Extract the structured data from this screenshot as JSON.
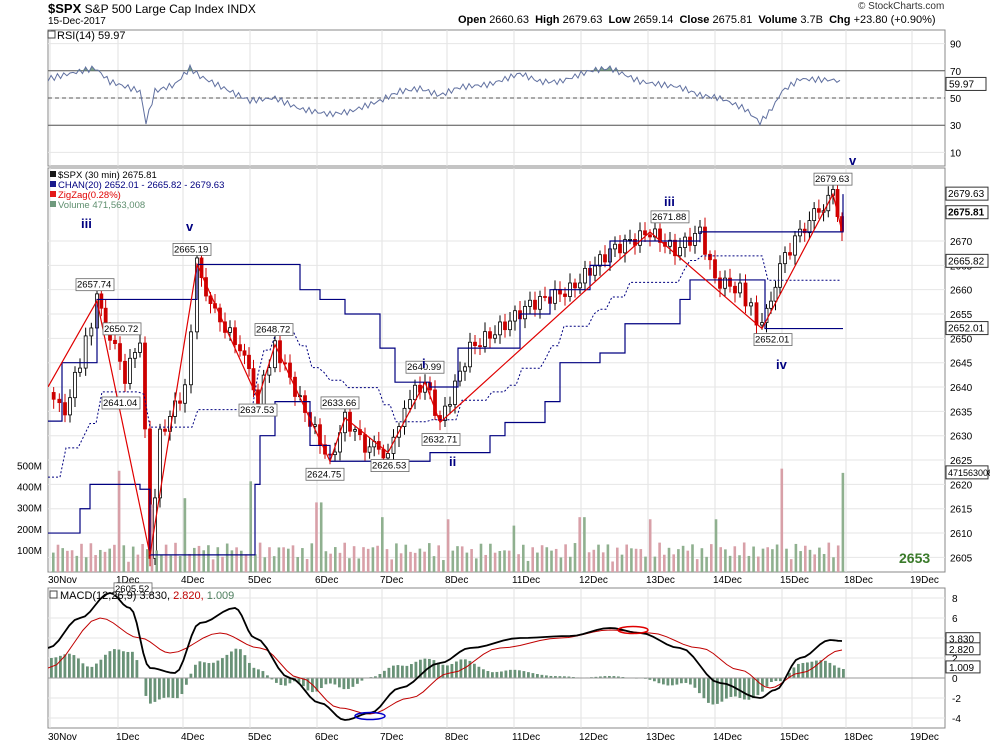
{
  "header": {
    "symbol": "$SPX",
    "name": "S&P 500 Large Cap Index",
    "exchange": "INDX",
    "date": "15-Dec-2017",
    "open_label": "Open",
    "open": "2660.63",
    "high_label": "High",
    "high": "2679.63",
    "low_label": "Low",
    "low": "2659.14",
    "close_label": "Close",
    "close": "2675.81",
    "volume_label": "Volume",
    "volume": "3.7B",
    "chg_label": "Chg",
    "chg": "+23.80 (+0.90%)",
    "brand": "© StockCharts.com"
  },
  "colors": {
    "price_up": "#000000",
    "price_down": "#cc0000",
    "channel": "#000080",
    "zigzag": "#e00000",
    "vol_up": "#8fb08f",
    "vol_down": "#d8a0a8",
    "rsi_fill": "#5f8f6f",
    "macd": "#000000",
    "macd_signal": "#c00000",
    "hist": "#4f7f5f",
    "wave": "#000080",
    "ellipse_red": "#e00000",
    "ellipse_blue": "#0000cc"
  },
  "chart_data": [
    {
      "panel": "rsi",
      "type": "line",
      "legend": "RSI(14)",
      "legend_value": "59.97",
      "y_ticks": [
        "90",
        "70",
        "50",
        "30",
        "10"
      ],
      "last_label": "59.97",
      "levels": [
        70,
        50,
        30
      ],
      "ylim": [
        0,
        100
      ]
    },
    {
      "panel": "price",
      "type": "candlestick",
      "legend": [
        {
          "text": "$SPX (30 min) 2675.81",
          "color": "#000000"
        },
        {
          "text": "CHAN(20) 2652.01 - 2665.82 - 2679.63",
          "color": "#000080"
        },
        {
          "text": "ZigZag(0.28%)",
          "color": "#e00000"
        },
        {
          "text": "Volume 471,563,008",
          "color": "#5f8f6f"
        }
      ],
      "ylim": [
        2602,
        2685
      ],
      "y_ticks": [
        "2670",
        "2665",
        "2660",
        "2655",
        "2650",
        "2645",
        "2640",
        "2635",
        "2630",
        "2625",
        "2620",
        "2615",
        "2610",
        "2605"
      ],
      "right_labels": [
        "2679.63",
        "2675.81",
        "2665.82",
        "2652.01",
        "471563008"
      ],
      "volume_ticks": [
        "500M",
        "400M",
        "300M",
        "200M",
        "100M"
      ],
      "point_labels": [
        {
          "text": "2657.74",
          "value": 2657.74
        },
        {
          "text": "2650.72",
          "value": 2650.72
        },
        {
          "text": "2641.04",
          "value": 2641.04
        },
        {
          "text": "2605.52",
          "value": 2605.52
        },
        {
          "text": "2665.19",
          "value": 2665.19
        },
        {
          "text": "2637.53",
          "value": 2637.53
        },
        {
          "text": "2648.72",
          "value": 2648.72
        },
        {
          "text": "2624.75",
          "value": 2624.75
        },
        {
          "text": "2633.66",
          "value": 2633.66
        },
        {
          "text": "2626.53",
          "value": 2626.53
        },
        {
          "text": "2640.99",
          "value": 2640.99
        },
        {
          "text": "2632.71",
          "value": 2632.71
        },
        {
          "text": "2671.88",
          "value": 2671.88
        },
        {
          "text": "2652.01",
          "value": 2652.01
        },
        {
          "text": "2679.63",
          "value": 2679.63
        }
      ],
      "waves": [
        "iii",
        "v",
        "i",
        "ii",
        "iii",
        "iv",
        "v"
      ],
      "badge": "2653"
    },
    {
      "panel": "macd",
      "type": "line",
      "legend": "MACD(12,26,9)",
      "legend_values": [
        "3.830",
        "2.820",
        "1.009"
      ],
      "y_ticks": [
        "8",
        "6",
        "4",
        "2",
        "0",
        "-2",
        "-4"
      ],
      "right_labels": [
        "3.830",
        "2.820",
        "1.009"
      ],
      "ylim": [
        -5,
        9
      ]
    }
  ],
  "x_axis": {
    "labels": [
      "30Nov",
      "1Dec",
      "4Dec",
      "5Dec",
      "6Dec",
      "7Dec",
      "8Dec",
      "11Dec",
      "12Dec",
      "13Dec",
      "14Dec",
      "15Dec",
      "18Dec",
      "19Dec"
    ]
  }
}
